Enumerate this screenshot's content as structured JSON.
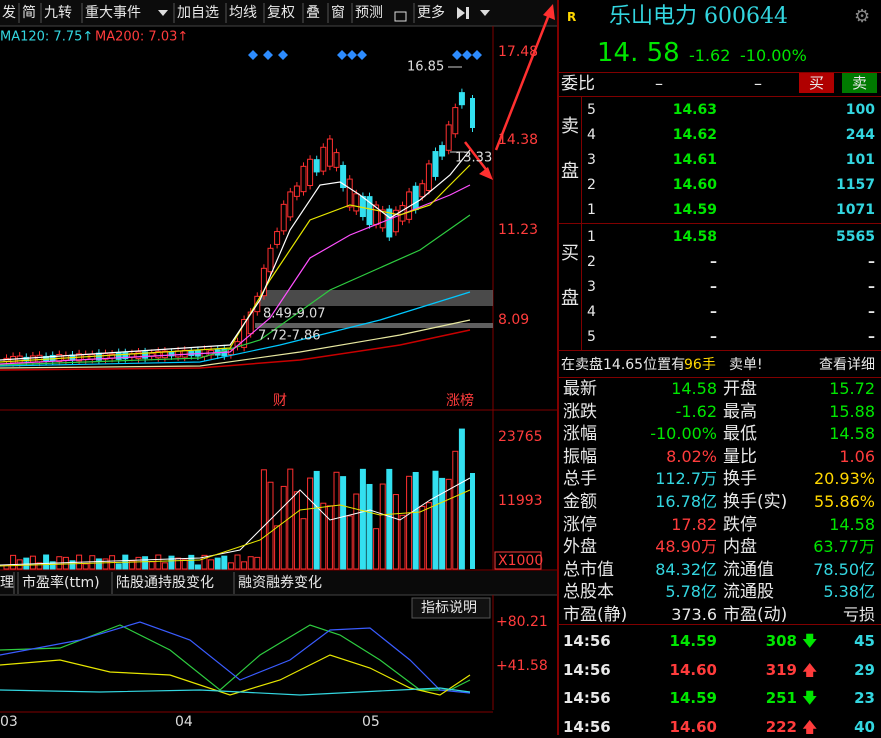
{
  "toolbar": [
    "发",
    "简",
    "九转",
    "重大事件",
    "加自选",
    "均线",
    "复权",
    "叠",
    "窗",
    "预测",
    "更多"
  ],
  "ma_legend": [
    "MA120: 7.75↑",
    "MA200: 7.03↑"
  ],
  "price_axis": [
    "17.48",
    "14.38",
    "11.23",
    "8.09"
  ],
  "annotations": {
    "high": "16.85",
    "low": "13.33",
    "range1": "8.49-9.07",
    "range2": "7.72-7.86",
    "event1": "财",
    "event2": "涨榜"
  },
  "volume_axis": [
    "23765",
    "11993",
    "X1000"
  ],
  "tabs": [
    "理",
    "市盈率(ttm)",
    "陆股通持股变化",
    "融资融券变化"
  ],
  "indicator_help": "指标说明",
  "indicator_axis": [
    "+80.21",
    "+41.58"
  ],
  "months": [
    "03",
    "04",
    "05"
  ],
  "quote": {
    "badge": "R",
    "name": "乐山电力 600644",
    "price": "14. 58",
    "change": "-1.62",
    "change_pct": "-10.00%"
  },
  "order_ratio": {
    "label": "委比",
    "ratio": "–",
    "diff": "–",
    "buy": "买",
    "sell": "卖"
  },
  "ask": {
    "label": [
      "卖",
      "盘"
    ],
    "rows": [
      [
        "5",
        "14.63",
        "100"
      ],
      [
        "4",
        "14.62",
        "244"
      ],
      [
        "3",
        "14.61",
        "101"
      ],
      [
        "2",
        "14.60",
        "1157"
      ],
      [
        "1",
        "14.59",
        "1071"
      ]
    ]
  },
  "bid": {
    "label": [
      "买",
      "盘"
    ],
    "rows": [
      [
        "1",
        "14.58",
        "5565"
      ],
      [
        "2",
        "–",
        "–"
      ],
      [
        "3",
        "–",
        "–"
      ],
      [
        "4",
        "–",
        "–"
      ],
      [
        "5",
        "–",
        "–"
      ]
    ]
  },
  "notice": {
    "text": "在卖盘14.65位置有",
    "lots": "96手",
    "suffix": "卖单!",
    "link": "查看详细"
  },
  "stats": [
    [
      "最新",
      "14.58",
      "开盘",
      "15.72"
    ],
    [
      "涨跌",
      "-1.62",
      "最高",
      "15.88"
    ],
    [
      "涨幅",
      "-10.00%",
      "最低",
      "14.58"
    ],
    [
      "振幅",
      "8.02%",
      "量比",
      "1.06"
    ],
    [
      "总手",
      "112.7万",
      "换手",
      "20.93%"
    ],
    [
      "金额",
      "16.78亿",
      "换手(实)",
      "55.86%"
    ],
    [
      "涨停",
      "17.82",
      "跌停",
      "14.58"
    ],
    [
      "外盘",
      "48.90万",
      "内盘",
      "63.77万"
    ],
    [
      "总市值",
      "84.32亿",
      "流通值",
      "78.50亿"
    ],
    [
      "总股本",
      "5.78亿",
      "流通股",
      "5.38亿"
    ],
    [
      "市盈(静)",
      "373.6",
      "市盈(动)",
      "亏损"
    ]
  ],
  "trades": [
    [
      "14:56",
      "14.59",
      "308",
      "45"
    ],
    [
      "14:56",
      "14.60",
      "319",
      "29"
    ],
    [
      "14:56",
      "14.59",
      "251",
      "23"
    ],
    [
      "14:56",
      "14.60",
      "222",
      "40"
    ]
  ]
}
